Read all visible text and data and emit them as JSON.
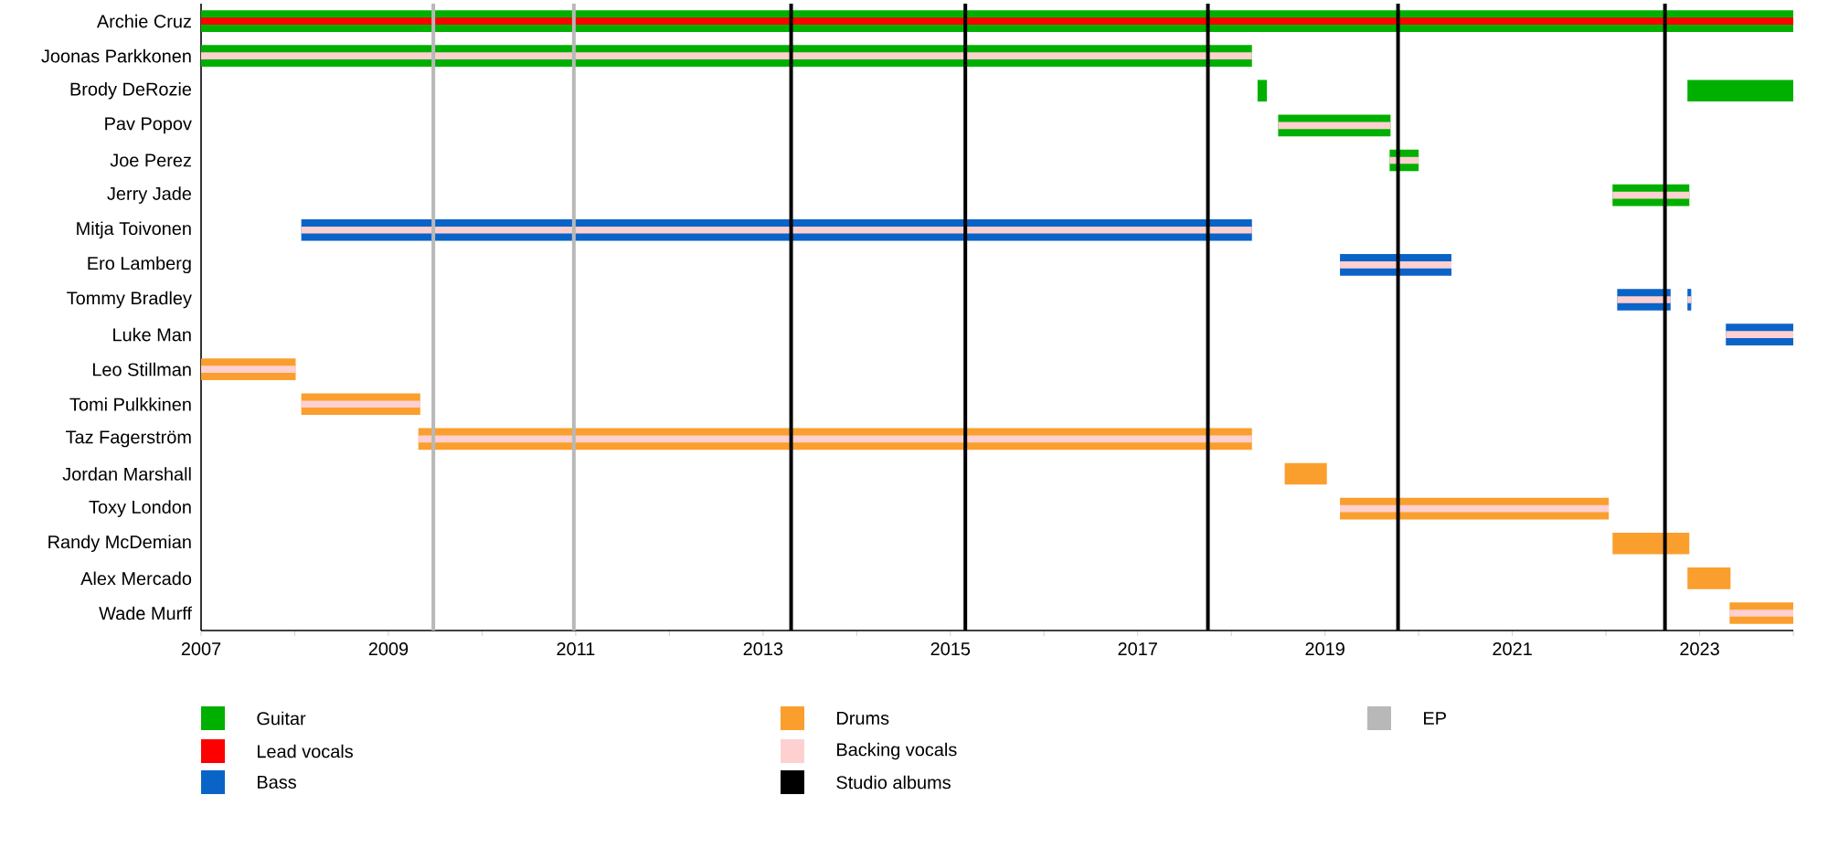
{
  "chart_data": {
    "type": "bar",
    "orientation": "horizontal",
    "legend": "bottom",
    "categories": [
      "Archie Cruz",
      "Joonas Parkkonen",
      "Brody DeRozie",
      "Pav Popov",
      "Joe Perez",
      "Jerry Jade",
      "Mitja Toivonen",
      "Ero Lamberg",
      "Tommy Bradley",
      "Luke Man",
      "Leo Stillman",
      "Tomi Pulkkinen",
      "Taz Fagerström",
      "Jordan Marshall",
      "Toxy London",
      "Randy McDemian",
      "Alex Mercado",
      "Wade Murff"
    ],
    "xlim": [
      2007,
      2024
    ],
    "xticks": [
      2007,
      {
        "value": 2008,
        "label": null
      },
      2009,
      {
        "value": 2010,
        "label": null
      },
      2011,
      {
        "value": 2012,
        "label": null
      },
      2013,
      {
        "value": 2014,
        "label": null
      },
      2015,
      {
        "value": 2016,
        "label": null
      },
      2017,
      {
        "value": 2018,
        "label": null
      },
      2019,
      {
        "value": 2020,
        "label": null
      },
      2021,
      {
        "value": 2022,
        "label": null
      },
      2023,
      {
        "value": 2024,
        "label": null
      }
    ],
    "series": [
      {
        "name": "Guitar",
        "color": "#00b000",
        "base": [
          2007,
          2007,
          2018.28,
          2018.5,
          2019.69,
          2022.07,
          null,
          null,
          null,
          null,
          null,
          null,
          null,
          null,
          null,
          null,
          null,
          null
        ],
        "values": [
          17,
          11.22,
          0.1,
          1.2,
          0.31,
          0.82,
          null,
          null,
          null,
          null,
          null,
          null,
          null,
          null,
          null,
          null,
          null,
          null
        ]
      },
      {
        "name": "Lead vocals",
        "color": "#ff0000",
        "base": [
          2007,
          null,
          null,
          null,
          null,
          null,
          null,
          null,
          null,
          null,
          null,
          null,
          null,
          null,
          null,
          null,
          null,
          null
        ],
        "values": [
          17,
          null,
          null,
          null,
          null,
          null,
          null,
          null,
          null,
          null,
          null,
          null,
          null,
          null,
          null,
          null,
          null,
          null
        ]
      },
      {
        "name": "Bass",
        "color": "#0a64c8",
        "base": [
          null,
          null,
          null,
          null,
          null,
          null,
          2008.07,
          2019.16,
          2022.12,
          2023.28,
          null,
          null,
          null,
          null,
          null,
          null,
          null,
          null
        ],
        "values": [
          null,
          null,
          null,
          null,
          null,
          null,
          10.15,
          1.19,
          0.57,
          0.72,
          null,
          null,
          null,
          null,
          null,
          null,
          null,
          null
        ]
      },
      {
        "name": "Drums",
        "color": "#fa9f2e",
        "base": [
          null,
          null,
          null,
          null,
          null,
          null,
          null,
          null,
          null,
          null,
          2007,
          2008.07,
          2009.32,
          2018.57,
          2019.16,
          2022.07,
          2022.87,
          2023.32
        ],
        "values": [
          null,
          null,
          null,
          null,
          null,
          null,
          null,
          null,
          null,
          null,
          1.01,
          1.27,
          8.9,
          0.45,
          2.87,
          0.82,
          0.46,
          0.68
        ]
      },
      {
        "name": "Backing vocals",
        "color": "#ffd0d0",
        "base": [
          null,
          2007,
          null,
          2018.5,
          2019.69,
          2022.07,
          2008.07,
          2019.16,
          2022.12,
          2023.28,
          2007,
          2008.07,
          2009.32,
          null,
          2019.16,
          null,
          null,
          2023.32
        ],
        "values": [
          null,
          11.22,
          null,
          1.2,
          0.31,
          0.82,
          10.15,
          1.19,
          0.57,
          0.72,
          1.01,
          1.27,
          8.9,
          null,
          2.87,
          null,
          null,
          0.68
        ]
      },
      {
        "color": "#00b000",
        "base": [
          null,
          null,
          2022.87,
          null,
          null,
          null,
          null,
          null,
          null,
          null,
          null,
          null,
          null,
          null,
          null,
          null,
          null,
          null
        ],
        "values": [
          null,
          null,
          1.13,
          null,
          null,
          null,
          null,
          null,
          null,
          null,
          null,
          null,
          null,
          null,
          null,
          null,
          null,
          null
        ]
      },
      {
        "color": "#0a64c8",
        "base": [
          null,
          null,
          null,
          null,
          null,
          null,
          null,
          null,
          2022.87,
          null,
          null,
          null,
          null,
          null,
          null,
          null,
          null,
          null
        ],
        "values": [
          null,
          null,
          null,
          null,
          null,
          null,
          null,
          null,
          0.04,
          null,
          null,
          null,
          null,
          null,
          null,
          null,
          null,
          null
        ]
      },
      {
        "color": "#ffd0d0",
        "base": [
          null,
          null,
          null,
          null,
          null,
          null,
          null,
          null,
          2022.87,
          null,
          null,
          null,
          null,
          null,
          null,
          null,
          null,
          null
        ],
        "values": [
          null,
          null,
          null,
          null,
          null,
          null,
          null,
          null,
          0.04,
          null,
          null,
          null,
          null,
          null,
          null,
          null,
          null,
          null
        ]
      }
    ],
    "ref_lines": [
      {
        "axis": "x",
        "value": 2013.3,
        "label": "Studio albums",
        "color": "#000000"
      },
      {
        "axis": "x",
        "value": 2015.16,
        "color": "#000000"
      },
      {
        "axis": "x",
        "value": 2017.75,
        "color": "#000000"
      },
      {
        "axis": "x",
        "value": 2019.78,
        "color": "#000000"
      },
      {
        "axis": "x",
        "value": 2022.63,
        "color": "#000000"
      },
      {
        "axis": "x",
        "value": 2009.48,
        "label": "EP",
        "color": "#b8b8b8"
      },
      {
        "axis": "x",
        "value": 2010.98,
        "color": "#b8b8b8"
      }
    ]
  }
}
